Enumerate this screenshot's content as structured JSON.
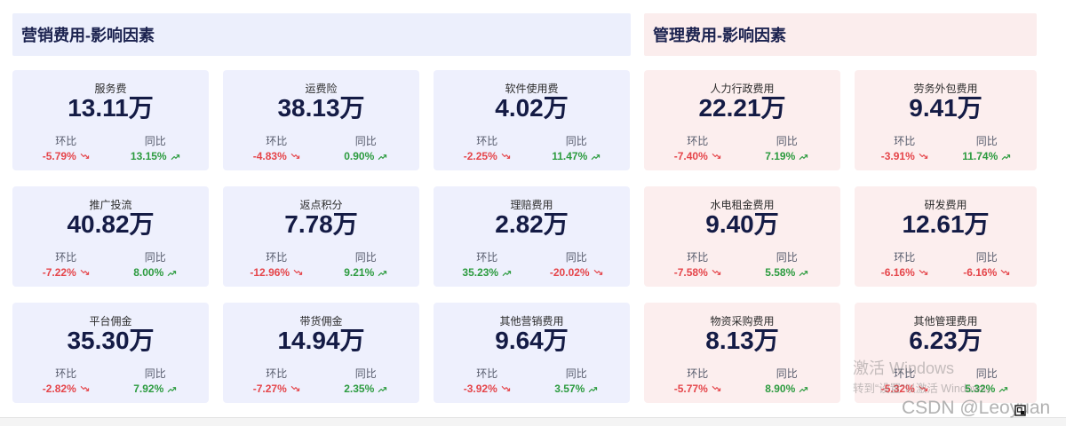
{
  "labels": {
    "mom": "环比",
    "yoy": "同比"
  },
  "colors": {
    "down": "#E5454A",
    "up": "#2C9B3F",
    "value_text": "#141B45",
    "title_text": "#1C2350"
  },
  "sections": [
    {
      "title": "营销费用-影响因素",
      "header_bg": "#ECEFFC",
      "card_bg": "#EEF0FD",
      "cards": [
        {
          "name": "服务费",
          "value": "13.11万",
          "mom": {
            "value": "-5.79%",
            "icon": "trend-down-icon"
          },
          "yoy": {
            "value": "13.15%",
            "icon": "trend-up-icon"
          }
        },
        {
          "name": "运费险",
          "value": "38.13万",
          "mom": {
            "value": "-4.83%",
            "icon": "trend-down-icon"
          },
          "yoy": {
            "value": "0.90%",
            "icon": "trend-up-icon"
          }
        },
        {
          "name": "软件使用费",
          "value": "4.02万",
          "mom": {
            "value": "-2.25%",
            "icon": "trend-down-icon"
          },
          "yoy": {
            "value": "11.47%",
            "icon": "trend-up-icon"
          }
        },
        {
          "name": "推广投流",
          "value": "40.82万",
          "mom": {
            "value": "-7.22%",
            "icon": "trend-down-icon"
          },
          "yoy": {
            "value": "8.00%",
            "icon": "trend-up-icon"
          }
        },
        {
          "name": "返点积分",
          "value": "7.78万",
          "mom": {
            "value": "-12.96%",
            "icon": "trend-down-icon"
          },
          "yoy": {
            "value": "9.21%",
            "icon": "trend-up-icon"
          }
        },
        {
          "name": "理赔费用",
          "value": "2.82万",
          "mom": {
            "value": "35.23%",
            "icon": "trend-up-icon"
          },
          "yoy": {
            "value": "-20.02%",
            "icon": "trend-down-icon"
          }
        },
        {
          "name": "平台佣金",
          "value": "35.30万",
          "mom": {
            "value": "-2.82%",
            "icon": "trend-down-icon"
          },
          "yoy": {
            "value": "7.92%",
            "icon": "trend-up-icon"
          }
        },
        {
          "name": "带货佣金",
          "value": "14.94万",
          "mom": {
            "value": "-7.27%",
            "icon": "trend-down-icon"
          },
          "yoy": {
            "value": "2.35%",
            "icon": "trend-up-icon"
          }
        },
        {
          "name": "其他营销费用",
          "value": "9.64万",
          "mom": {
            "value": "-3.92%",
            "icon": "trend-down-icon"
          },
          "yoy": {
            "value": "3.57%",
            "icon": "trend-up-icon"
          }
        }
      ]
    },
    {
      "title": "管理费用-影响因素",
      "header_bg": "#FBEDED",
      "card_bg": "#FCEEEE",
      "cards": [
        {
          "name": "人力行政费用",
          "value": "22.21万",
          "mom": {
            "value": "-7.40%",
            "icon": "trend-down-icon"
          },
          "yoy": {
            "value": "7.19%",
            "icon": "trend-up-icon"
          }
        },
        {
          "name": "劳务外包费用",
          "value": "9.41万",
          "mom": {
            "value": "-3.91%",
            "icon": "trend-down-icon"
          },
          "yoy": {
            "value": "11.74%",
            "icon": "trend-up-icon"
          }
        },
        {
          "name": "水电租金费用",
          "value": "9.40万",
          "mom": {
            "value": "-7.58%",
            "icon": "trend-down-icon"
          },
          "yoy": {
            "value": "5.58%",
            "icon": "trend-up-icon"
          }
        },
        {
          "name": "研发费用",
          "value": "12.61万",
          "mom": {
            "value": "-6.16%",
            "icon": "trend-down-icon"
          },
          "yoy": {
            "value": "-6.16%",
            "icon": "trend-down-icon"
          }
        },
        {
          "name": "物资采购费用",
          "value": "8.13万",
          "mom": {
            "value": "-5.77%",
            "icon": "trend-down-icon"
          },
          "yoy": {
            "value": "8.90%",
            "icon": "trend-up-icon"
          }
        },
        {
          "name": "其他管理费用",
          "value": "6.23万",
          "mom": {
            "value": "-5.32%",
            "icon": "trend-down-icon"
          },
          "yoy": {
            "value": "5.32%",
            "icon": "trend-up-icon"
          }
        }
      ]
    }
  ],
  "watermarks": {
    "windows_title": "激活 Windows",
    "windows_hint": "转到“设置”以激活 Windows。",
    "csdn": "CSDN @Leoyuan"
  },
  "icons": {
    "corner": "resize-handle-icon"
  }
}
